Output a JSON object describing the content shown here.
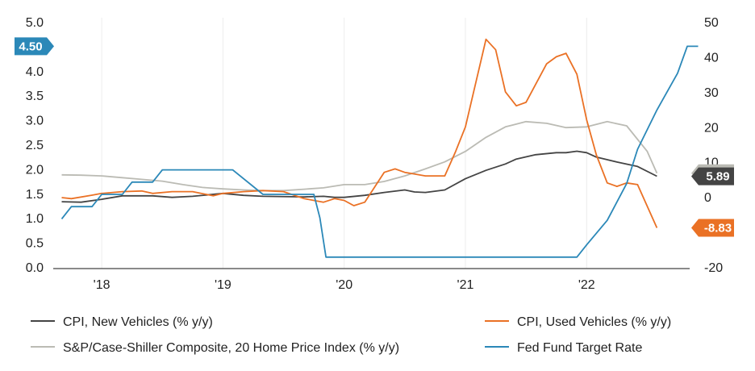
{
  "chart_data": {
    "type": "line",
    "title": "",
    "xlabel": "",
    "ylabel": "",
    "x_range": [
      2017.6,
      2022.85
    ],
    "x_ticks": [
      {
        "label": "'18",
        "value": 2018.0
      },
      {
        "label": "'19",
        "value": 2019.0
      },
      {
        "label": "'20",
        "value": 2020.0
      },
      {
        "label": "'21",
        "value": 2021.0
      },
      {
        "label": "'22",
        "value": 2022.0
      }
    ],
    "y_left": {
      "range": [
        0,
        5
      ],
      "ticks": [
        "0.0",
        "0.5",
        "1.0",
        "1.5",
        "2.0",
        "2.5",
        "3.0",
        "3.5",
        "4.0",
        "4.5",
        "5.0"
      ]
    },
    "y_right": {
      "range": [
        -20,
        50
      ],
      "ticks": [
        "-20",
        "-10",
        "0",
        "10",
        "20",
        "30",
        "40",
        "50"
      ]
    },
    "grid": "vertical",
    "legend_position": "bottom",
    "series": [
      {
        "name": "CPI, New Vehicles (% y/y)",
        "axis": "left",
        "color": "#444444",
        "points": [
          [
            2017.67,
            1.33
          ],
          [
            2017.83,
            1.32
          ],
          [
            2018.0,
            1.38
          ],
          [
            2018.17,
            1.45
          ],
          [
            2018.42,
            1.45
          ],
          [
            2018.58,
            1.42
          ],
          [
            2018.75,
            1.44
          ],
          [
            2019.0,
            1.5
          ],
          [
            2019.17,
            1.46
          ],
          [
            2019.33,
            1.44
          ],
          [
            2019.67,
            1.43
          ],
          [
            2019.83,
            1.44
          ],
          [
            2019.92,
            1.42
          ],
          [
            2020.0,
            1.42
          ],
          [
            2020.17,
            1.46
          ],
          [
            2020.33,
            1.52
          ],
          [
            2020.5,
            1.57
          ],
          [
            2020.58,
            1.53
          ],
          [
            2020.67,
            1.52
          ],
          [
            2020.83,
            1.57
          ],
          [
            2021.0,
            1.8
          ],
          [
            2021.17,
            1.97
          ],
          [
            2021.33,
            2.1
          ],
          [
            2021.42,
            2.2
          ],
          [
            2021.58,
            2.29
          ],
          [
            2021.75,
            2.33
          ],
          [
            2021.83,
            2.33
          ],
          [
            2021.92,
            2.36
          ],
          [
            2022.0,
            2.33
          ],
          [
            2022.08,
            2.24
          ],
          [
            2022.25,
            2.14
          ],
          [
            2022.42,
            2.05
          ],
          [
            2022.58,
            1.85
          ]
        ]
      },
      {
        "name": "S&P/Case-Shiller Composite, 20 Home Price Index (% y/y)",
        "axis": "right",
        "color": "#bbbbb4",
        "points": [
          [
            2017.67,
            6.3
          ],
          [
            2017.83,
            6.2
          ],
          [
            2018.0,
            6.0
          ],
          [
            2018.17,
            5.5
          ],
          [
            2018.33,
            5.0
          ],
          [
            2018.5,
            4.5
          ],
          [
            2018.67,
            3.5
          ],
          [
            2018.83,
            2.7
          ],
          [
            2019.0,
            2.3
          ],
          [
            2019.17,
            2.0
          ],
          [
            2019.33,
            1.8
          ],
          [
            2019.5,
            1.8
          ],
          [
            2019.67,
            2.2
          ],
          [
            2019.83,
            2.6
          ],
          [
            2020.0,
            3.5
          ],
          [
            2020.17,
            3.5
          ],
          [
            2020.33,
            4.4
          ],
          [
            2020.5,
            6.0
          ],
          [
            2020.67,
            8.0
          ],
          [
            2020.83,
            10.0
          ],
          [
            2021.0,
            13.0
          ],
          [
            2021.17,
            17.0
          ],
          [
            2021.33,
            20.0
          ],
          [
            2021.5,
            21.5
          ],
          [
            2021.67,
            21.0
          ],
          [
            2021.83,
            19.8
          ],
          [
            2022.0,
            20.0
          ],
          [
            2022.17,
            21.5
          ],
          [
            2022.33,
            20.3
          ],
          [
            2022.5,
            13.0
          ],
          [
            2022.58,
            6.77
          ]
        ]
      },
      {
        "name": "CPI, Used Vehicles (% y/y)",
        "axis": "right",
        "color": "#ea7125",
        "points": [
          [
            2017.67,
            -0.2
          ],
          [
            2017.75,
            -0.5
          ],
          [
            2017.92,
            0.5
          ],
          [
            2018.0,
            1.0
          ],
          [
            2018.17,
            1.5
          ],
          [
            2018.33,
            1.7
          ],
          [
            2018.42,
            1.0
          ],
          [
            2018.58,
            1.5
          ],
          [
            2018.75,
            1.5
          ],
          [
            2018.92,
            0.3
          ],
          [
            2019.0,
            1.0
          ],
          [
            2019.17,
            1.5
          ],
          [
            2019.33,
            1.8
          ],
          [
            2019.5,
            1.5
          ],
          [
            2019.67,
            -0.5
          ],
          [
            2019.83,
            -1.5
          ],
          [
            2019.92,
            -0.5
          ],
          [
            2020.0,
            -1.0
          ],
          [
            2020.08,
            -2.5
          ],
          [
            2020.17,
            -1.5
          ],
          [
            2020.33,
            7.0
          ],
          [
            2020.42,
            8.0
          ],
          [
            2020.5,
            7.0
          ],
          [
            2020.67,
            6.0
          ],
          [
            2020.83,
            6.0
          ],
          [
            2020.92,
            13.0
          ],
          [
            2021.0,
            20.0
          ],
          [
            2021.17,
            45.0
          ],
          [
            2021.25,
            42.0
          ],
          [
            2021.33,
            30.0
          ],
          [
            2021.42,
            26.0
          ],
          [
            2021.5,
            27.0
          ],
          [
            2021.67,
            38.0
          ],
          [
            2021.75,
            40.0
          ],
          [
            2021.83,
            41.0
          ],
          [
            2021.92,
            35.0
          ],
          [
            2022.0,
            22.0
          ],
          [
            2022.08,
            12.0
          ],
          [
            2022.17,
            4.0
          ],
          [
            2022.25,
            3.0
          ],
          [
            2022.33,
            4.0
          ],
          [
            2022.42,
            3.5
          ],
          [
            2022.58,
            -8.83
          ]
        ]
      },
      {
        "name": "Fed Fund Target Rate",
        "axis": "left",
        "color": "#2b88b8",
        "points": [
          [
            2017.67,
            0.98
          ],
          [
            2017.75,
            1.23
          ],
          [
            2017.92,
            1.23
          ],
          [
            2018.0,
            1.48
          ],
          [
            2018.17,
            1.48
          ],
          [
            2018.25,
            1.73
          ],
          [
            2018.42,
            1.73
          ],
          [
            2018.5,
            1.98
          ],
          [
            2018.83,
            1.98
          ],
          [
            2019.0,
            1.98
          ],
          [
            2019.08,
            1.98
          ],
          [
            2019.33,
            1.48
          ],
          [
            2019.75,
            1.48
          ],
          [
            2019.8,
            1.0
          ],
          [
            2019.85,
            0.2
          ],
          [
            2020.25,
            0.2
          ],
          [
            2020.75,
            0.2
          ],
          [
            2021.25,
            0.2
          ],
          [
            2021.75,
            0.2
          ],
          [
            2021.92,
            0.2
          ],
          [
            2022.0,
            0.45
          ],
          [
            2022.17,
            0.95
          ],
          [
            2022.33,
            1.7
          ],
          [
            2022.42,
            2.4
          ],
          [
            2022.58,
            3.2
          ],
          [
            2022.75,
            3.95
          ],
          [
            2022.83,
            4.5
          ],
          [
            2022.92,
            4.5
          ]
        ]
      }
    ],
    "end_labels": [
      {
        "text": "4.50",
        "series": "Fed Fund Target Rate",
        "side": "left",
        "value": 4.5,
        "color": "#2b88b8"
      },
      {
        "text": "6.77",
        "series": "S&P/Case-Shiller Composite, 20 Home Price Index (% y/y)",
        "side": "right",
        "value": 6.77,
        "color": "#bbbbb4"
      },
      {
        "text": "5.89",
        "series": "CPI, New Vehicles (% y/y)",
        "side": "right",
        "value": 5.89,
        "color": "#444444"
      },
      {
        "text": "-8.83",
        "series": "CPI, Used Vehicles (% y/y)",
        "side": "right",
        "value": -8.83,
        "color": "#ea7125"
      }
    ]
  },
  "legend": [
    {
      "label": "CPI, New Vehicles (% y/y)",
      "color": "#444444"
    },
    {
      "label": "CPI, Used Vehicles (% y/y)",
      "color": "#ea7125"
    },
    {
      "label": "S&P/Case-Shiller Composite, 20 Home Price Index (% y/y)",
      "color": "#bbbbb4"
    },
    {
      "label": "Fed Fund Target Rate",
      "color": "#2b88b8"
    }
  ]
}
